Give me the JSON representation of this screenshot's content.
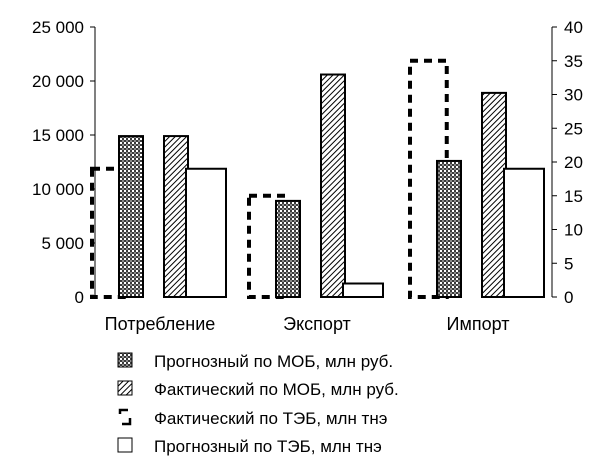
{
  "chart_data": {
    "type": "bar",
    "title": "",
    "xlabel": "",
    "ylabel": "",
    "categories": [
      "Потребление",
      "Экспорт",
      "Импорт"
    ],
    "y_left": {
      "ylim": [
        0,
        25000
      ],
      "ticks": [
        0,
        5000,
        10000,
        15000,
        20000,
        25000
      ],
      "tick_labels": [
        "0",
        "5 000",
        "10 000",
        "15 000",
        "20 000",
        "25 000"
      ]
    },
    "y_right": {
      "ylim": [
        0,
        40
      ],
      "ticks": [
        0,
        5,
        10,
        15,
        20,
        25,
        30,
        35,
        40
      ],
      "tick_labels": [
        "0",
        "5",
        "10",
        "15",
        "20",
        "25",
        "30",
        "35",
        "40"
      ]
    },
    "grid": false,
    "legend_position": "bottom",
    "series": [
      {
        "name": "Прогнозный по МОБ, млн руб.",
        "axis": "left",
        "style": "crosshatch",
        "values": [
          14900,
          8900,
          12600
        ]
      },
      {
        "name": "Фактический по МОБ, млн руб.",
        "axis": "left",
        "style": "diagonal",
        "values": [
          14900,
          20600,
          18900
        ]
      },
      {
        "name": "Фактический по ТЭБ, млн тнэ",
        "axis": "right",
        "style": "dashed-outline",
        "values": [
          19,
          15,
          35
        ]
      },
      {
        "name": "Прогнозный по ТЭБ, млн тнэ",
        "axis": "right",
        "style": "outline",
        "values": [
          19,
          2,
          19
        ]
      }
    ]
  }
}
